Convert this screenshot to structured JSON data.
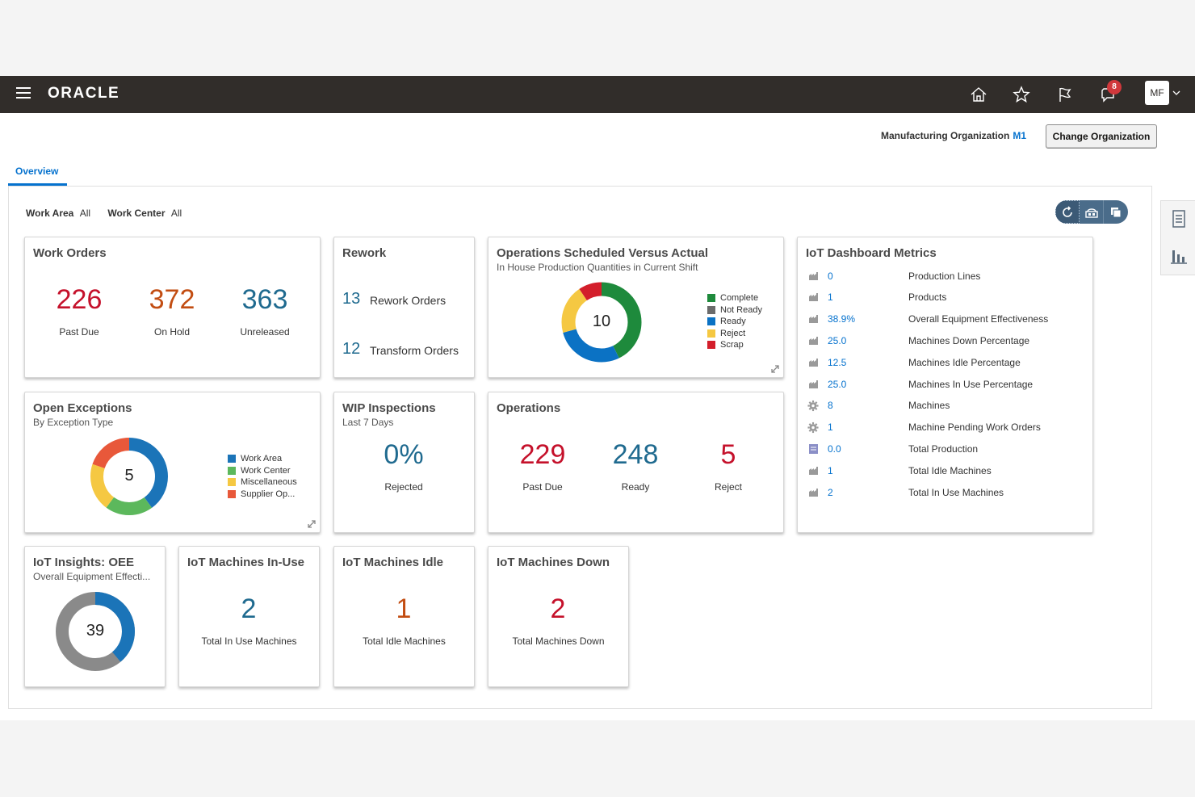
{
  "header": {
    "logo": "ORACLE",
    "notification_count": "8",
    "user_initials": "MF",
    "icons": [
      "menu-icon",
      "home-icon",
      "star-icon",
      "flag-icon",
      "notifications-icon",
      "chevron-down-icon"
    ]
  },
  "org": {
    "label": "Manufacturing Organization",
    "value": "M1",
    "change_button": "Change Organization"
  },
  "tabs": [
    {
      "label": "Overview",
      "active": true
    }
  ],
  "filters": {
    "work_area_label": "Work Area",
    "work_area_value": "All",
    "work_center_label": "Work Center",
    "work_center_value": "All"
  },
  "toolbar": {
    "icons": [
      "refresh-icon",
      "dashboard-settings-icon",
      "copy-icon"
    ]
  },
  "side_rail": {
    "icons": [
      "document-icon",
      "bar-chart-icon"
    ]
  },
  "colors": {
    "topbar": "#312d2a",
    "link": "#0572ce",
    "red": "#c5112b",
    "orange": "#c24d12",
    "blue": "#1f6a8f",
    "complete": "#1e8a3c",
    "not_ready": "#6b6b6b",
    "ready": "#0b72c4",
    "reject": "#f5c842",
    "scrap": "#d31e2b",
    "work_area": "#1b74b8",
    "work_center": "#5cb85c",
    "miscellaneous": "#f5c842",
    "supplier_op": "#e8583a",
    "oee_fill": "#1b74b8",
    "oee_rest": "#8a8a8a"
  },
  "cards": {
    "work_orders": {
      "title": "Work Orders",
      "metrics": [
        {
          "value": "226",
          "label": "Past Due"
        },
        {
          "value": "372",
          "label": "On Hold"
        },
        {
          "value": "363",
          "label": "Unreleased"
        }
      ]
    },
    "rework": {
      "title": "Rework",
      "items": [
        {
          "value": "13",
          "label": "Rework Orders"
        },
        {
          "value": "12",
          "label": "Transform Orders"
        }
      ]
    },
    "ops_sched": {
      "title": "Operations Scheduled Versus Actual",
      "subtitle": "In House Production Quantities in Current Shift",
      "center": "10",
      "legend": [
        "Complete",
        "Not Ready",
        "Ready",
        "Reject",
        "Scrap"
      ]
    },
    "open_exceptions": {
      "title": "Open Exceptions",
      "subtitle": "By Exception Type",
      "center": "5",
      "legend": [
        "Work Area",
        "Work Center",
        "Miscellaneous",
        "Supplier Op..."
      ]
    },
    "wip": {
      "title": "WIP Inspections",
      "subtitle": "Last 7 Days",
      "value": "0%",
      "label": "Rejected"
    },
    "operations": {
      "title": "Operations",
      "metrics": [
        {
          "value": "229",
          "label": "Past Due"
        },
        {
          "value": "248",
          "label": "Ready"
        },
        {
          "value": "5",
          "label": "Reject"
        }
      ]
    },
    "iot_metrics": {
      "title": "IoT Dashboard Metrics",
      "rows": [
        {
          "icon": "factory-icon",
          "value": "0",
          "label": "Production Lines"
        },
        {
          "icon": "factory-icon",
          "value": "1",
          "label": "Products"
        },
        {
          "icon": "factory-icon",
          "value": "38.9%",
          "label": "Overall Equipment Effectiveness"
        },
        {
          "icon": "factory-icon",
          "value": "25.0",
          "label": "Machines Down Percentage"
        },
        {
          "icon": "factory-icon",
          "value": "12.5",
          "label": "Machines Idle Percentage"
        },
        {
          "icon": "factory-icon",
          "value": "25.0",
          "label": "Machines In Use Percentage"
        },
        {
          "icon": "gear-icon",
          "value": "8",
          "label": "Machines"
        },
        {
          "icon": "gear-icon",
          "value": "1",
          "label": "Machine Pending Work Orders"
        },
        {
          "icon": "clipboard-icon",
          "value": "0.0",
          "label": "Total Production"
        },
        {
          "icon": "factory-icon",
          "value": "1",
          "label": "Total Idle Machines"
        },
        {
          "icon": "factory-icon",
          "value": "2",
          "label": "Total In Use Machines"
        }
      ]
    },
    "iot_oee": {
      "title": "IoT Insights: OEE",
      "subtitle": "Overall Equipment Effecti...",
      "center": "39",
      "fraction": 0.389
    },
    "iot_inuse": {
      "title": "IoT Machines In-Use",
      "value": "2",
      "label": "Total In Use Machines"
    },
    "iot_idle": {
      "title": "IoT Machines Idle",
      "value": "1",
      "label": "Total Idle Machines"
    },
    "iot_down": {
      "title": "IoT Machines Down",
      "value": "2",
      "label": "Total Machines Down"
    }
  }
}
